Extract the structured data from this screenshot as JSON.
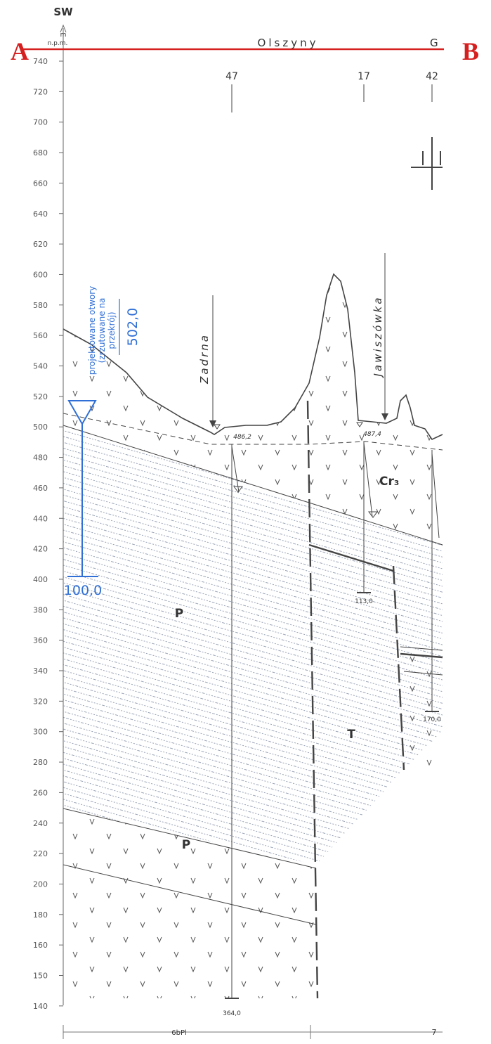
{
  "header": {
    "direction": "SW",
    "unit": [
      "m",
      "n.p.m."
    ]
  },
  "section_ends": [
    "A",
    "B"
  ],
  "places": [
    "Olszyny",
    "G"
  ],
  "boreholes": [
    {
      "label": "47",
      "water": "486,2",
      "depth": "364,0"
    },
    {
      "label": "17",
      "water": "487,4",
      "depth": "113,0"
    },
    {
      "label": "42",
      "depth": "170,0"
    }
  ],
  "rivers": [
    "Zadrna",
    "Jawiszówka"
  ],
  "units": [
    "Cr₃",
    "P",
    "P",
    "T"
  ],
  "axis": {
    "ticks": [
      740,
      720,
      700,
      680,
      660,
      640,
      620,
      600,
      580,
      560,
      540,
      520,
      500,
      480,
      460,
      440,
      420,
      400,
      380,
      360,
      340,
      320,
      300,
      280,
      260,
      240,
      220,
      200,
      180,
      160,
      150,
      140
    ]
  },
  "legend": {
    "lines": [
      "projektowane otwory",
      "(zrzutowane na",
      "przekrój)"
    ],
    "elevation": "502,0",
    "depth": "100,0"
  },
  "scale": [
    "6bPl",
    "7"
  ]
}
